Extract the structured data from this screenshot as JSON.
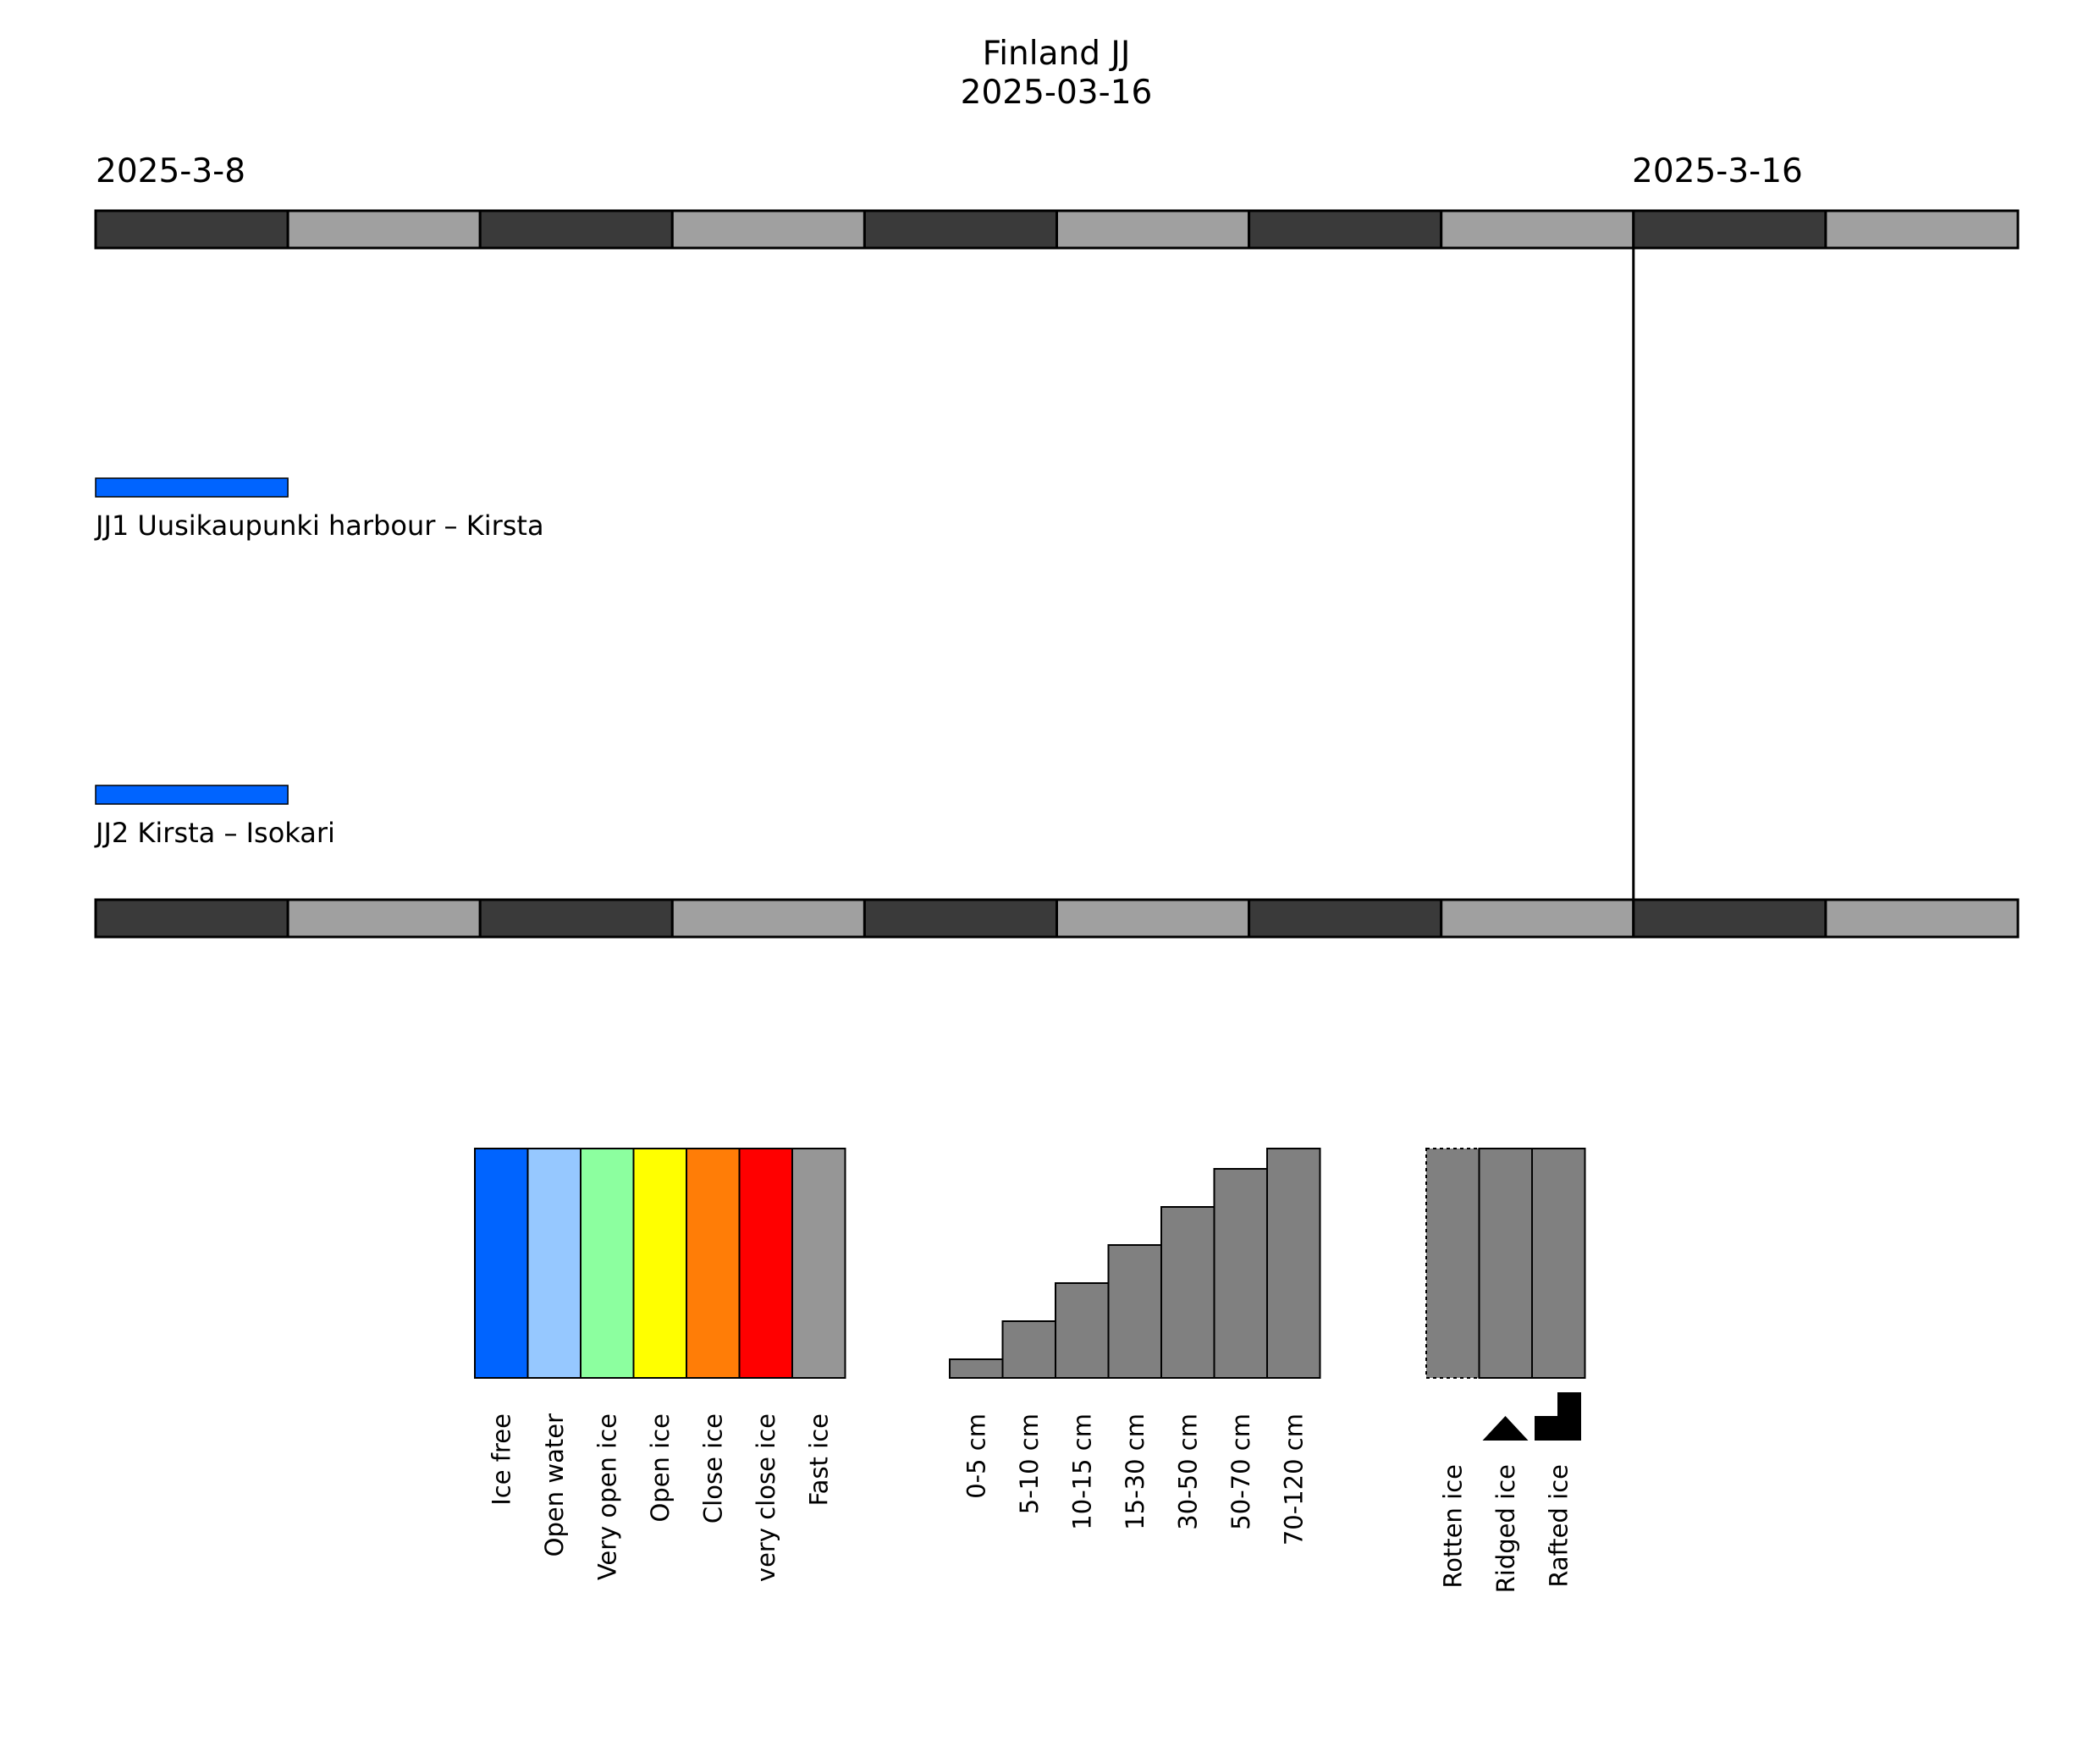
{
  "chart_data": {
    "type": "timeline",
    "title": "Finland JJ",
    "subtitle": "2025-03-16",
    "date_labels": {
      "start": "2025-3-8",
      "current": "2025-3-16"
    },
    "x_range": [
      "2025-03-08",
      "2025-03-18"
    ],
    "current_date": "2025-03-16",
    "scale_colors": {
      "dark": "#3a3a3a",
      "light": "#a0a0a0"
    },
    "routes": [
      {
        "name": "JJ1 Uusikaupunki harbour – Kirsta",
        "segments": [
          {
            "start": "2025-03-08",
            "end": "2025-03-09",
            "condition": "Ice free",
            "color": "#0064ff"
          }
        ]
      },
      {
        "name": "JJ2 Kirsta – Isokari",
        "segments": [
          {
            "start": "2025-03-08",
            "end": "2025-03-09",
            "condition": "Ice free",
            "color": "#0064ff"
          }
        ]
      }
    ],
    "legend": {
      "concentration": [
        {
          "label": "Ice free",
          "color": "#0064ff"
        },
        {
          "label": "Open water",
          "color": "#96c8ff"
        },
        {
          "label": "Very open ice",
          "color": "#8cff9f"
        },
        {
          "label": "Open ice",
          "color": "#ffff00"
        },
        {
          "label": "Close ice",
          "color": "#ff7d07"
        },
        {
          "label": "very close ice",
          "color": "#ff0000"
        },
        {
          "label": "Fast ice",
          "color": "#969696"
        }
      ],
      "thickness": [
        {
          "label": "0-5 cm",
          "level": 1
        },
        {
          "label": "5-10 cm",
          "level": 2
        },
        {
          "label": "10-15 cm",
          "level": 3
        },
        {
          "label": "15-30 cm",
          "level": 4
        },
        {
          "label": "30-50 cm",
          "level": 5
        },
        {
          "label": "50-70 cm",
          "level": 6
        },
        {
          "label": "70-120 cm",
          "level": 7
        }
      ],
      "thickness_color": "#808080",
      "features": [
        {
          "label": "Rotten ice",
          "icon": "none"
        },
        {
          "label": "Ridged ice",
          "icon": "triangle-icon"
        },
        {
          "label": "Rafted ice",
          "icon": "step-icon"
        }
      ]
    }
  }
}
